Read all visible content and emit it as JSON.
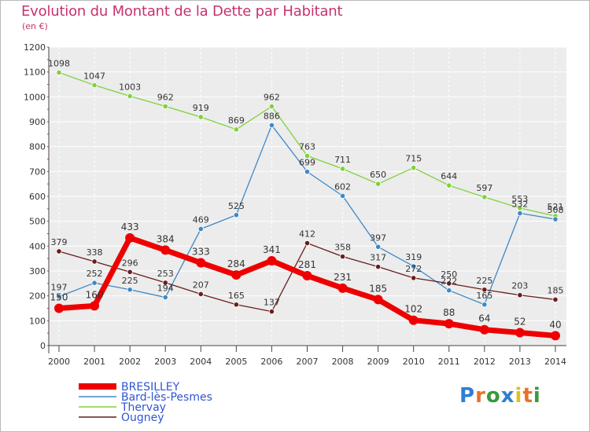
{
  "title": "Evolution du Montant de la Dette par Habitant",
  "unit": "(en €)",
  "logo": {
    "text": "Proxiti",
    "colors": [
      "#2f7fd1",
      "#e8732a",
      "#3a9a3a",
      "#2f7fd1",
      "#e0c020",
      "#e8732a",
      "#3a9a3a"
    ]
  },
  "chart_data": {
    "type": "line",
    "title": "Evolution du Montant de la Dette par Habitant",
    "subtitle": "(en €)",
    "x": [
      "2000",
      "2001",
      "2002",
      "2003",
      "2004",
      "2005",
      "2006",
      "2007",
      "2008",
      "2009",
      "2010",
      "2011",
      "2012",
      "2013",
      "2014"
    ],
    "ylim": [
      0,
      1200
    ],
    "yticks": [
      0,
      100,
      200,
      300,
      400,
      500,
      600,
      700,
      800,
      900,
      1000,
      1100,
      1200
    ],
    "grid": true,
    "legend_position": "bottom-left",
    "series": [
      {
        "name": "BRESILLEY",
        "color": "#ee0000",
        "values": [
          150,
          160,
          433,
          384,
          333,
          284,
          341,
          281,
          231,
          185,
          102,
          88,
          64,
          52,
          40
        ],
        "labels": [
          "150",
          "160",
          "433",
          "384",
          "333",
          "284",
          "341",
          "281",
          "231",
          "185",
          "102",
          "88",
          "64",
          "52",
          "40"
        ]
      },
      {
        "name": "Bard-lès-Pesmes",
        "color": "#3f88c5",
        "values": [
          197,
          252,
          225,
          194,
          469,
          525,
          886,
          699,
          602,
          397,
          319,
          222,
          165,
          532,
          508
        ],
        "labels": [
          "197",
          "252",
          "225",
          "194",
          "469",
          "525",
          "886",
          "699",
          "602",
          "397",
          "319",
          "222",
          "165",
          "532",
          "508"
        ]
      },
      {
        "name": "Thervay",
        "color": "#7fd13b",
        "values": [
          1098,
          1047,
          1003,
          962,
          919,
          869,
          962,
          763,
          711,
          650,
          715,
          644,
          597,
          553,
          521
        ],
        "labels": [
          "1098",
          "1047",
          "1003",
          "962",
          "919",
          "869",
          "962",
          "763",
          "711",
          "650",
          "715",
          "644",
          "597",
          "553",
          "521"
        ]
      },
      {
        "name": "Ougney",
        "color": "#6b1c1c",
        "values": [
          379,
          338,
          296,
          253,
          207,
          165,
          137,
          412,
          358,
          317,
          272,
          250,
          225,
          203,
          185
        ],
        "labels": [
          "379",
          "338",
          "296",
          "253",
          "207",
          "165",
          "137",
          "412",
          "358",
          "317",
          "272",
          "250",
          "225",
          "203",
          "185"
        ]
      }
    ]
  }
}
